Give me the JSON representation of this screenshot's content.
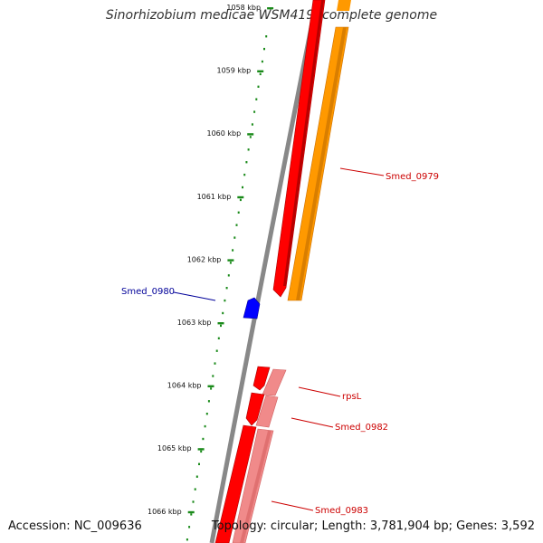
{
  "title": "Sinorhizobium medicae WSM419, complete genome",
  "footer": {
    "accession": "Accession: NC_009636",
    "stats": "Topology: circular; Length: 3,781,904 bp; Genes: 3,592"
  },
  "ruler": {
    "unit_label": "kbp",
    "ticks": [
      "1058 kbp",
      "1059 kbp",
      "1060 kbp",
      "1061 kbp",
      "1062 kbp",
      "1063 kbp",
      "1064 kbp",
      "1065 kbp",
      "1066 kbp"
    ]
  },
  "genes": [
    {
      "name": "Smed_0979",
      "color": "#ff9900",
      "strand": "minus",
      "label_color": "#cc0000"
    },
    {
      "name": "Smed_0980",
      "color": "#0000ff",
      "strand": "plus",
      "label_color": "#000099"
    },
    {
      "name": "rpsL",
      "color": "#ff0000",
      "strand": "minus",
      "label_color": "#cc0000"
    },
    {
      "name": "Smed_0982",
      "color": "#ff0000",
      "strand": "minus",
      "label_color": "#cc0000"
    },
    {
      "name": "Smed_0983",
      "color": "#ff0000",
      "strand": "minus",
      "label_color": "#cc0000"
    }
  ],
  "colors": {
    "backbone": "#808080",
    "cds": "#ff0000",
    "cds_light": "#f08a8a",
    "orange": "#ff9900",
    "blue": "#0000ff",
    "ruler": "#1a8a1a"
  }
}
